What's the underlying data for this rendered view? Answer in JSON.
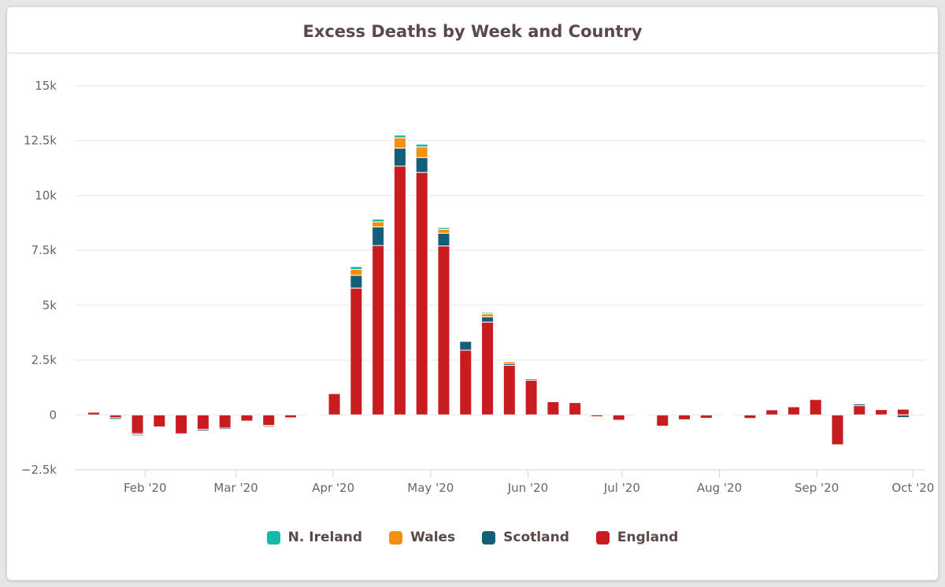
{
  "chart_data": {
    "type": "bar",
    "stacked": true,
    "title": "Excess Deaths by Week and Country",
    "xlabel": "",
    "ylabel": "",
    "ylim": [
      -2500,
      15000
    ],
    "yticks": [
      -2500,
      0,
      2500,
      5000,
      7500,
      10000,
      12500,
      15000
    ],
    "ytick_labels": [
      "−2.5k",
      "0",
      "2.5k",
      "5k",
      "7.5k",
      "10k",
      "12.5k",
      "15k"
    ],
    "xticks": [
      {
        "label": "Feb '20",
        "pos": 3.35
      },
      {
        "label": "Mar '20",
        "pos": 7.5
      },
      {
        "label": "Apr '20",
        "pos": 11.95
      },
      {
        "label": "May '20",
        "pos": 16.4
      },
      {
        "label": "Jun '20",
        "pos": 20.85
      },
      {
        "label": "Jul '20",
        "pos": 25.15
      },
      {
        "label": "Aug '20",
        "pos": 29.6
      },
      {
        "label": "Sep '20",
        "pos": 34.05
      },
      {
        "label": "Oct '20",
        "pos": 38.45
      }
    ],
    "weeks": 38,
    "series": [
      {
        "name": "England",
        "color": "#c91c1f",
        "values": [
          120,
          -130,
          -850,
          -550,
          -860,
          -660,
          -600,
          -280,
          -480,
          -130,
          30,
          970,
          5780,
          7720,
          11340,
          11050,
          7700,
          2950,
          4230,
          2260,
          1580,
          600,
          560,
          -80,
          -240,
          -20,
          -510,
          -220,
          -150,
          -30,
          -160,
          230,
          370,
          700,
          -1360,
          420,
          240,
          260
        ]
      },
      {
        "name": "Scotland",
        "color": "#155e7a",
        "values": [
          0,
          -70,
          -60,
          -10,
          0,
          -70,
          -60,
          0,
          -50,
          0,
          0,
          0,
          580,
          850,
          820,
          680,
          580,
          400,
          240,
          90,
          60,
          0,
          0,
          0,
          0,
          0,
          0,
          0,
          0,
          0,
          0,
          0,
          0,
          0,
          0,
          80,
          0,
          -120
        ]
      },
      {
        "name": "Wales",
        "color": "#f5900f",
        "values": [
          0,
          0,
          -60,
          0,
          0,
          0,
          0,
          0,
          -50,
          0,
          0,
          0,
          270,
          230,
          470,
          480,
          180,
          0,
          140,
          80,
          0,
          0,
          0,
          0,
          0,
          0,
          0,
          0,
          0,
          0,
          0,
          0,
          0,
          0,
          0,
          0,
          0,
          0
        ]
      },
      {
        "name": "N. Ireland",
        "color": "#12b9a4",
        "values": [
          0,
          0,
          0,
          0,
          0,
          0,
          0,
          0,
          0,
          0,
          0,
          0,
          130,
          120,
          120,
          130,
          80,
          0,
          60,
          30,
          0,
          0,
          0,
          0,
          0,
          0,
          0,
          0,
          0,
          0,
          0,
          0,
          0,
          0,
          0,
          0,
          0,
          0
        ]
      }
    ],
    "legend": [
      "N. Ireland",
      "Wales",
      "Scotland",
      "England"
    ],
    "legend_position": "bottom-center",
    "grid": true
  },
  "colors": {
    "england": "#c91c1f",
    "scotland": "#155e7a",
    "wales": "#f5900f",
    "n_ireland": "#12b9a4",
    "grid": "#e6e6e6",
    "title": "#5a4a47"
  }
}
